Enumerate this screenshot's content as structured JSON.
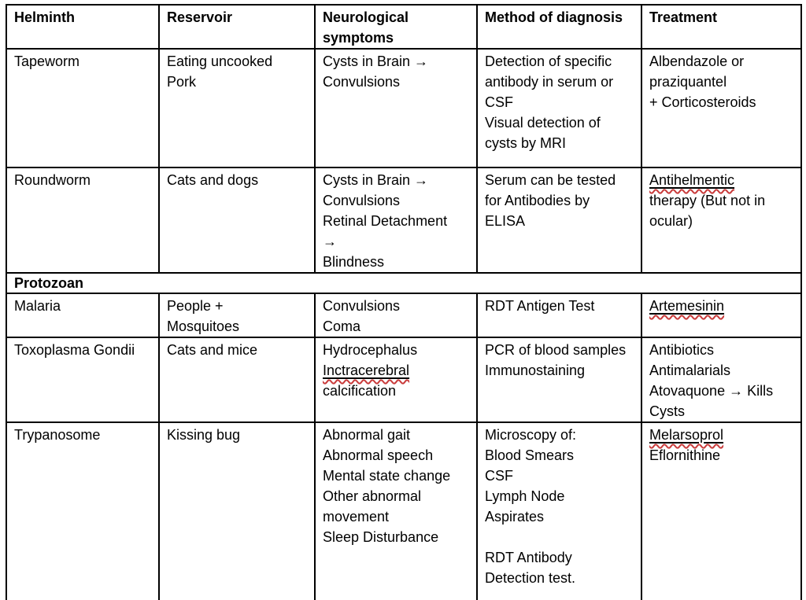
{
  "colors": {
    "background": "#FFFFFF",
    "text": "#000000",
    "border": "#000000",
    "spellcheck_squiggle": "#C93C3C"
  },
  "table": {
    "columns": [
      {
        "label": "Helminth"
      },
      {
        "label": "Reservoir"
      },
      {
        "label": "Neurological symptoms"
      },
      {
        "label": "Method of diagnosis"
      },
      {
        "label": "Treatment"
      }
    ],
    "rows": [
      {
        "cells": [
          [
            "Tapeworm"
          ],
          [
            "Eating uncooked",
            "Pork"
          ],
          [
            "Cysts in Brain →",
            "Convulsions"
          ],
          [
            "Detection of specific",
            "antibody in serum or",
            "CSF",
            "Visual detection of",
            "cysts by MRI"
          ],
          [
            "Albendazole or",
            "praziquantel",
            "+ Corticosteroids"
          ]
        ]
      },
      {
        "cells": [
          [
            "Roundworm"
          ],
          [
            "Cats and dogs"
          ],
          [
            "Cysts in Brain →",
            "Convulsions",
            "Retinal Detachment",
            "→",
            "Blindness"
          ],
          [
            "Serum can be tested",
            "for Antibodies by",
            "ELISA"
          ],
          [
            {
              "text": "Antihelmentic",
              "underline": true,
              "misspelled": true
            },
            "therapy (But not in",
            "ocular)"
          ]
        ]
      },
      {
        "divider": true,
        "label": "Protozoan"
      },
      {
        "cells": [
          [
            "Malaria"
          ],
          [
            "People +",
            "Mosquitoes"
          ],
          [
            "Convulsions",
            "Coma"
          ],
          [
            "RDT Antigen Test"
          ],
          [
            {
              "text": "Artemesinin",
              "underline": true,
              "misspelled": true
            }
          ]
        ]
      },
      {
        "cells": [
          [
            "Toxoplasma Gondii"
          ],
          [
            "Cats and mice"
          ],
          [
            "Hydrocephalus",
            {
              "text": "Inctracerebral",
              "underline": true,
              "misspelled": true
            },
            "calcification"
          ],
          [
            "PCR of blood samples",
            "Immunostaining"
          ],
          [
            "Antibiotics",
            "Antimalarials",
            "Atovaquone → Kills",
            "Cysts"
          ]
        ]
      },
      {
        "cells": [
          [
            "Trypanosome"
          ],
          [
            "Kissing bug"
          ],
          [
            "Abnormal gait",
            "Abnormal speech",
            "Mental state change",
            "Other abnormal",
            "movement",
            "Sleep Disturbance"
          ],
          [
            "Microscopy of:",
            "Blood Smears",
            "CSF",
            "Lymph Node",
            "Aspirates",
            "",
            "RDT Antibody",
            "Detection test."
          ],
          [
            {
              "text": "Melarsoprol",
              "underline": true,
              "misspelled": true
            },
            "Eflornithine"
          ]
        ]
      }
    ]
  }
}
